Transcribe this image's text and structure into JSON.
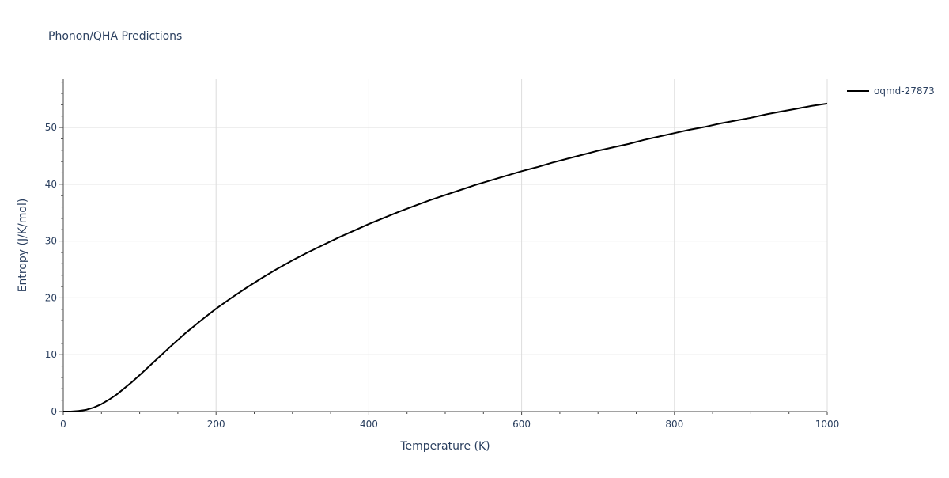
{
  "chart_data": {
    "type": "line",
    "title": "Phonon/QHA Predictions",
    "xlabel": "Temperature (K)",
    "ylabel": "Entropy (J/K/mol)",
    "xlim": [
      0,
      1000
    ],
    "ylim": [
      0,
      58.5
    ],
    "x_ticks": [
      0,
      200,
      400,
      600,
      800,
      1000
    ],
    "y_ticks": [
      0,
      10,
      20,
      30,
      40,
      50
    ],
    "x_tick_labels": [
      "0",
      "200",
      "400",
      "600",
      "800",
      "1000"
    ],
    "y_tick_labels": [
      "0",
      "10",
      "20",
      "30",
      "40",
      "50"
    ],
    "grid": true,
    "legend_position": "top-right",
    "colors": {
      "series": "#000000",
      "text": "#2a3f5f",
      "grid": "#dcdcdc"
    },
    "series": [
      {
        "name": "oqmd-27873",
        "x": [
          0,
          10,
          20,
          30,
          40,
          50,
          60,
          70,
          80,
          90,
          100,
          120,
          140,
          160,
          180,
          200,
          220,
          240,
          260,
          280,
          300,
          320,
          340,
          360,
          380,
          400,
          420,
          440,
          460,
          480,
          500,
          520,
          540,
          560,
          580,
          600,
          620,
          640,
          660,
          680,
          700,
          720,
          740,
          760,
          780,
          800,
          820,
          840,
          860,
          880,
          900,
          920,
          940,
          960,
          980,
          1000
        ],
        "y": [
          0,
          0.0,
          0.1,
          0.3,
          0.7,
          1.3,
          2.1,
          3.0,
          4.1,
          5.2,
          6.4,
          8.9,
          11.4,
          13.8,
          16.0,
          18.1,
          20.0,
          21.8,
          23.5,
          25.1,
          26.6,
          28.0,
          29.3,
          30.6,
          31.8,
          33.0,
          34.1,
          35.2,
          36.2,
          37.2,
          38.1,
          39.0,
          39.9,
          40.7,
          41.5,
          42.3,
          43.0,
          43.8,
          44.5,
          45.2,
          45.9,
          46.5,
          47.1,
          47.8,
          48.4,
          49.0,
          49.6,
          50.1,
          50.7,
          51.2,
          51.7,
          52.3,
          52.8,
          53.3,
          53.8,
          54.2
        ]
      }
    ]
  }
}
